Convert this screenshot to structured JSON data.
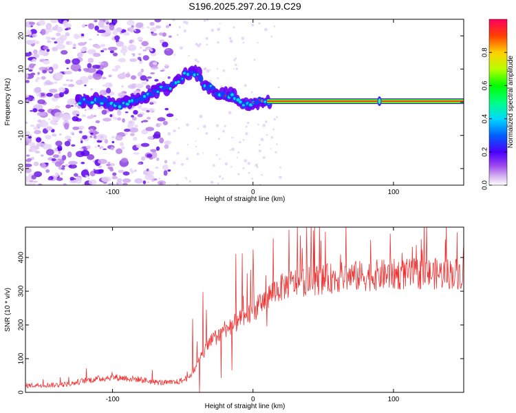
{
  "title": "S196.2025.297.20.19.C29",
  "chart_data": [
    {
      "type": "heatmap",
      "name": "spectrogram",
      "xlabel": "Height of straight line (km)",
      "ylabel": "Frequency (Hz)",
      "xlim": [
        -162,
        150
      ],
      "ylim": [
        -25,
        25
      ],
      "xticks": [
        -100,
        0,
        100
      ],
      "yticks": [
        -20,
        -10,
        0,
        10,
        20
      ],
      "colorbar": {
        "label": "Normalized spectral amplitude",
        "range": [
          0,
          1
        ],
        "ticks": [
          0.0,
          0.2,
          0.4,
          0.6,
          0.8
        ],
        "tick_labels": [
          "0.0",
          "0.2",
          "0.4",
          "0.6",
          "0.8"
        ]
      },
      "ridge": [
        {
          "x": -124,
          "y": 0.2
        },
        {
          "x": -110,
          "y": 0.5
        },
        {
          "x": -100,
          "y": -0.8
        },
        {
          "x": -90,
          "y": -0.5
        },
        {
          "x": -80,
          "y": 1.0
        },
        {
          "x": -70,
          "y": 3.5
        },
        {
          "x": -60,
          "y": 4.5
        },
        {
          "x": -52,
          "y": 7.0
        },
        {
          "x": -47,
          "y": 8.5
        },
        {
          "x": -42,
          "y": 9.0
        },
        {
          "x": -38,
          "y": 8.0
        },
        {
          "x": -35,
          "y": 5.0
        },
        {
          "x": -30,
          "y": 4.0
        },
        {
          "x": -25,
          "y": 3.0
        },
        {
          "x": -20,
          "y": 2.5
        },
        {
          "x": -15,
          "y": 2.0
        },
        {
          "x": -10,
          "y": 0.5
        },
        {
          "x": -5,
          "y": -0.5
        },
        {
          "x": 0,
          "y": -0.5
        },
        {
          "x": 5,
          "y": 0.0
        },
        {
          "x": 10,
          "y": 0.3
        },
        {
          "x": 50,
          "y": 0.3
        },
        {
          "x": 100,
          "y": 0.3
        },
        {
          "x": 150,
          "y": 0.3
        }
      ],
      "noise_region_x": [
        -162,
        -58
      ]
    },
    {
      "type": "line",
      "name": "snr",
      "xlabel": "Height of straight line (km)",
      "ylabel": "SNR (10 * v/v)",
      "xlim": [
        -162,
        150
      ],
      "ylim": [
        0,
        490
      ],
      "xticks": [
        -100,
        0,
        100
      ],
      "yticks": [
        0,
        100,
        200,
        300,
        400
      ],
      "color": "#ee3333",
      "series": [
        {
          "name": "SNR",
          "x": [
            -162,
            -150,
            -140,
            -130,
            -120,
            -110,
            -100,
            -90,
            -80,
            -70,
            -60,
            -55,
            -50,
            -45,
            -40,
            -35,
            -30,
            -25,
            -20,
            -15,
            -10,
            -5,
            0,
            5,
            10,
            15,
            20,
            25,
            30,
            40,
            50,
            60,
            70,
            80,
            90,
            100,
            110,
            120,
            130,
            140,
            150
          ],
          "y": [
            20,
            22,
            22,
            25,
            35,
            40,
            45,
            42,
            38,
            30,
            28,
            30,
            35,
            50,
            80,
            120,
            150,
            170,
            190,
            200,
            210,
            225,
            240,
            260,
            280,
            300,
            310,
            320,
            325,
            330,
            335,
            340,
            345,
            345,
            348,
            350,
            350,
            352,
            352,
            353,
            352
          ]
        }
      ]
    }
  ],
  "colors": {
    "frame": "#000000",
    "snr_line": "#ee3333"
  }
}
